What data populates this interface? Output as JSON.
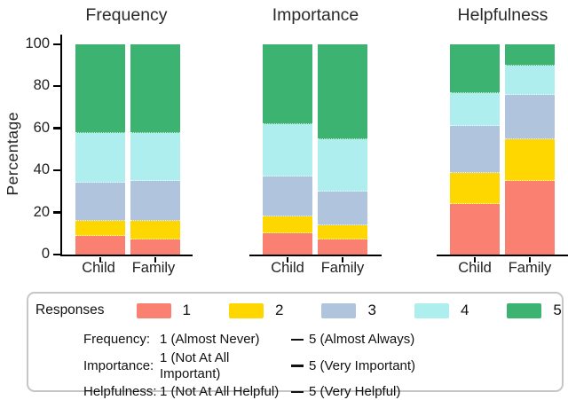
{
  "chart_data": {
    "type": "bar",
    "stacked": true,
    "unit": "percent",
    "categories": [
      "Child",
      "Family"
    ],
    "ylabel": "Percentage",
    "ylim": [
      0,
      100
    ],
    "yticks": [
      0,
      20,
      40,
      60,
      80,
      100
    ],
    "grid": false,
    "legend_position": "bottom",
    "colors": {
      "1": "#FA8072",
      "2": "#FFD700",
      "3": "#B0C4DE",
      "4": "#AFEEEE",
      "5": "#3CB371"
    },
    "panels": [
      {
        "title": "Frequency",
        "series": [
          {
            "name": "1",
            "values": [
              9,
              7
            ]
          },
          {
            "name": "2",
            "values": [
              7,
              9
            ]
          },
          {
            "name": "3",
            "values": [
              18,
              19
            ]
          },
          {
            "name": "4",
            "values": [
              24,
              23
            ]
          },
          {
            "name": "5",
            "values": [
              42,
              42
            ]
          }
        ]
      },
      {
        "title": "Importance",
        "series": [
          {
            "name": "1",
            "values": [
              10,
              7
            ]
          },
          {
            "name": "2",
            "values": [
              8,
              7
            ]
          },
          {
            "name": "3",
            "values": [
              19,
              16
            ]
          },
          {
            "name": "4",
            "values": [
              25,
              25
            ]
          },
          {
            "name": "5",
            "values": [
              38,
              45
            ]
          }
        ]
      },
      {
        "title": "Helpfulness",
        "series": [
          {
            "name": "1",
            "values": [
              24,
              35
            ]
          },
          {
            "name": "2",
            "values": [
              15,
              20
            ]
          },
          {
            "name": "3",
            "values": [
              22,
              21
            ]
          },
          {
            "name": "4",
            "values": [
              16,
              14
            ]
          },
          {
            "name": "5",
            "values": [
              23,
              10
            ]
          }
        ]
      }
    ]
  },
  "legend": {
    "title": "Responses",
    "entries": [
      {
        "label": "1",
        "color": "#FA8072"
      },
      {
        "label": "2",
        "color": "#FFD700"
      },
      {
        "label": "3",
        "color": "#B0C4DE"
      },
      {
        "label": "4",
        "color": "#AFEEEE"
      },
      {
        "label": "5",
        "color": "#3CB371"
      }
    ],
    "scales": [
      {
        "name": "Frequency:",
        "low": "1 (Almost Never)",
        "high": "5 (Almost Always)"
      },
      {
        "name": "Importance:",
        "low": "1 (Not At All Important)",
        "high": "5 (Very Important)"
      },
      {
        "name": "Helpfulness:",
        "low": "1 (Not At All Helpful)",
        "high": "5 (Very Helpful)"
      }
    ]
  }
}
